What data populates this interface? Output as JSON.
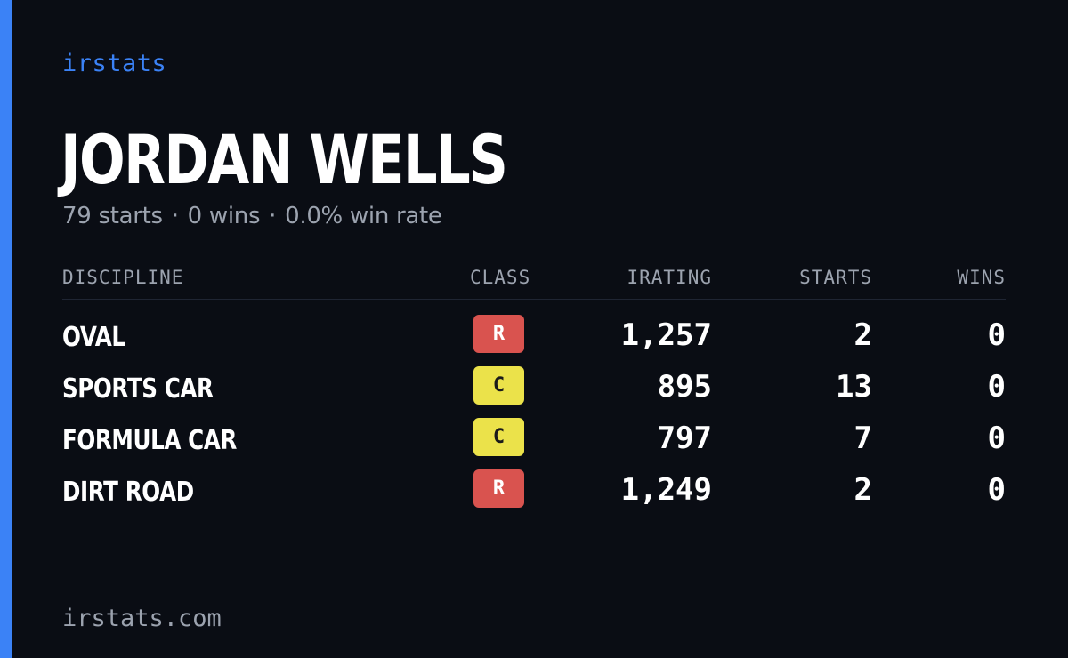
{
  "brand": "irstats",
  "driver": {
    "name": "JORDAN WELLS"
  },
  "summary": {
    "starts": "79 starts",
    "wins": "0 wins",
    "win_rate": "0.0% win rate",
    "separator": "·"
  },
  "table": {
    "headers": {
      "discipline": "DISCIPLINE",
      "class": "CLASS",
      "irating": "IRATING",
      "starts": "STARTS",
      "wins": "WINS"
    },
    "rows": [
      {
        "discipline": "OVAL",
        "class": "R",
        "irating": "1,257",
        "starts": "2",
        "wins": "0"
      },
      {
        "discipline": "SPORTS CAR",
        "class": "C",
        "irating": "895",
        "starts": "13",
        "wins": "0"
      },
      {
        "discipline": "FORMULA CAR",
        "class": "C",
        "irating": "797",
        "starts": "7",
        "wins": "0"
      },
      {
        "discipline": "DIRT ROAD",
        "class": "R",
        "irating": "1,249",
        "starts": "2",
        "wins": "0"
      }
    ]
  },
  "footer": "irstats.com",
  "colors": {
    "background": "#0a0d14",
    "accent": "#3b82f6",
    "class_r": "#d9534f",
    "class_c": "#ebe24a",
    "muted_text": "#9ca3af"
  }
}
